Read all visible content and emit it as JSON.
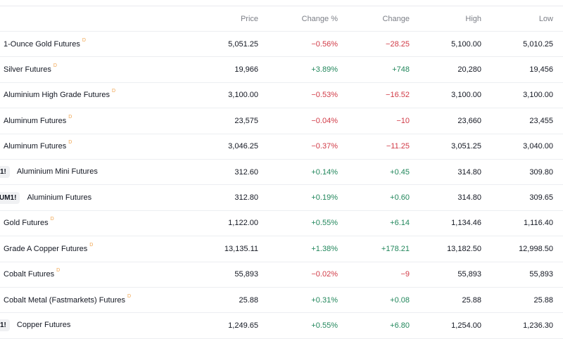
{
  "columns": [
    "",
    "Price",
    "Change %",
    "Change",
    "High",
    "Low"
  ],
  "colors": {
    "negative": "#d13b47",
    "positive": "#22875c",
    "delay_marker": "#f0a24a"
  },
  "rows": [
    {
      "badge": "",
      "name": "1-Ounce Gold Futures",
      "delayed": "D",
      "price": "5,051.25",
      "change_pct": "−0.56%",
      "change": "−28.25",
      "high": "5,100.00",
      "low": "5,010.25",
      "dir": "neg"
    },
    {
      "badge": "",
      "name": "Silver Futures",
      "delayed": "D",
      "price": "19,966",
      "change_pct": "+3.89%",
      "change": "+748",
      "high": "20,280",
      "low": "19,456",
      "dir": "pos"
    },
    {
      "badge": "",
      "name": "Aluminium High Grade Futures",
      "delayed": "D",
      "price": "3,100.00",
      "change_pct": "−0.53%",
      "change": "−16.52",
      "high": "3,100.00",
      "low": "3,100.00",
      "dir": "neg"
    },
    {
      "badge": "",
      "name": "Aluminum Futures",
      "delayed": "D",
      "price": "23,575",
      "change_pct": "−0.04%",
      "change": "−10",
      "high": "23,660",
      "low": "23,455",
      "dir": "neg"
    },
    {
      "badge": "",
      "name": "Aluminum Futures",
      "delayed": "D",
      "price": "3,046.25",
      "change_pct": "−0.37%",
      "change": "−11.25",
      "high": "3,051.25",
      "low": "3,040.00",
      "dir": "neg"
    },
    {
      "badge": "1!",
      "name": "Aluminium Mini Futures",
      "delayed": "",
      "price": "312.60",
      "change_pct": "+0.14%",
      "change": "+0.45",
      "high": "314.80",
      "low": "309.80",
      "dir": "pos"
    },
    {
      "badge": "UM1!",
      "name": "Aluminium Futures",
      "delayed": "",
      "price": "312.80",
      "change_pct": "+0.19%",
      "change": "+0.60",
      "high": "314.80",
      "low": "309.65",
      "dir": "pos"
    },
    {
      "badge": "",
      "name": "Gold Futures",
      "delayed": "D",
      "price": "1,122.00",
      "change_pct": "+0.55%",
      "change": "+6.14",
      "high": "1,134.46",
      "low": "1,116.40",
      "dir": "pos"
    },
    {
      "badge": "",
      "name": "Grade A Copper Futures",
      "delayed": "D",
      "price": "13,135.11",
      "change_pct": "+1.38%",
      "change": "+178.21",
      "high": "13,182.50",
      "low": "12,998.50",
      "dir": "pos"
    },
    {
      "badge": "",
      "name": "Cobalt Futures",
      "delayed": "D",
      "price": "55,893",
      "change_pct": "−0.02%",
      "change": "−9",
      "high": "55,893",
      "low": "55,893",
      "dir": "neg"
    },
    {
      "badge": "",
      "name": "Cobalt Metal (Fastmarkets) Futures",
      "delayed": "D",
      "price": "25.88",
      "change_pct": "+0.31%",
      "change": "+0.08",
      "high": "25.88",
      "low": "25.88",
      "dir": "pos"
    },
    {
      "badge": "1!",
      "name": "Copper Futures",
      "delayed": "",
      "price": "1,249.65",
      "change_pct": "+0.55%",
      "change": "+6.80",
      "high": "1,254.00",
      "low": "1,236.30",
      "dir": "pos"
    }
  ]
}
